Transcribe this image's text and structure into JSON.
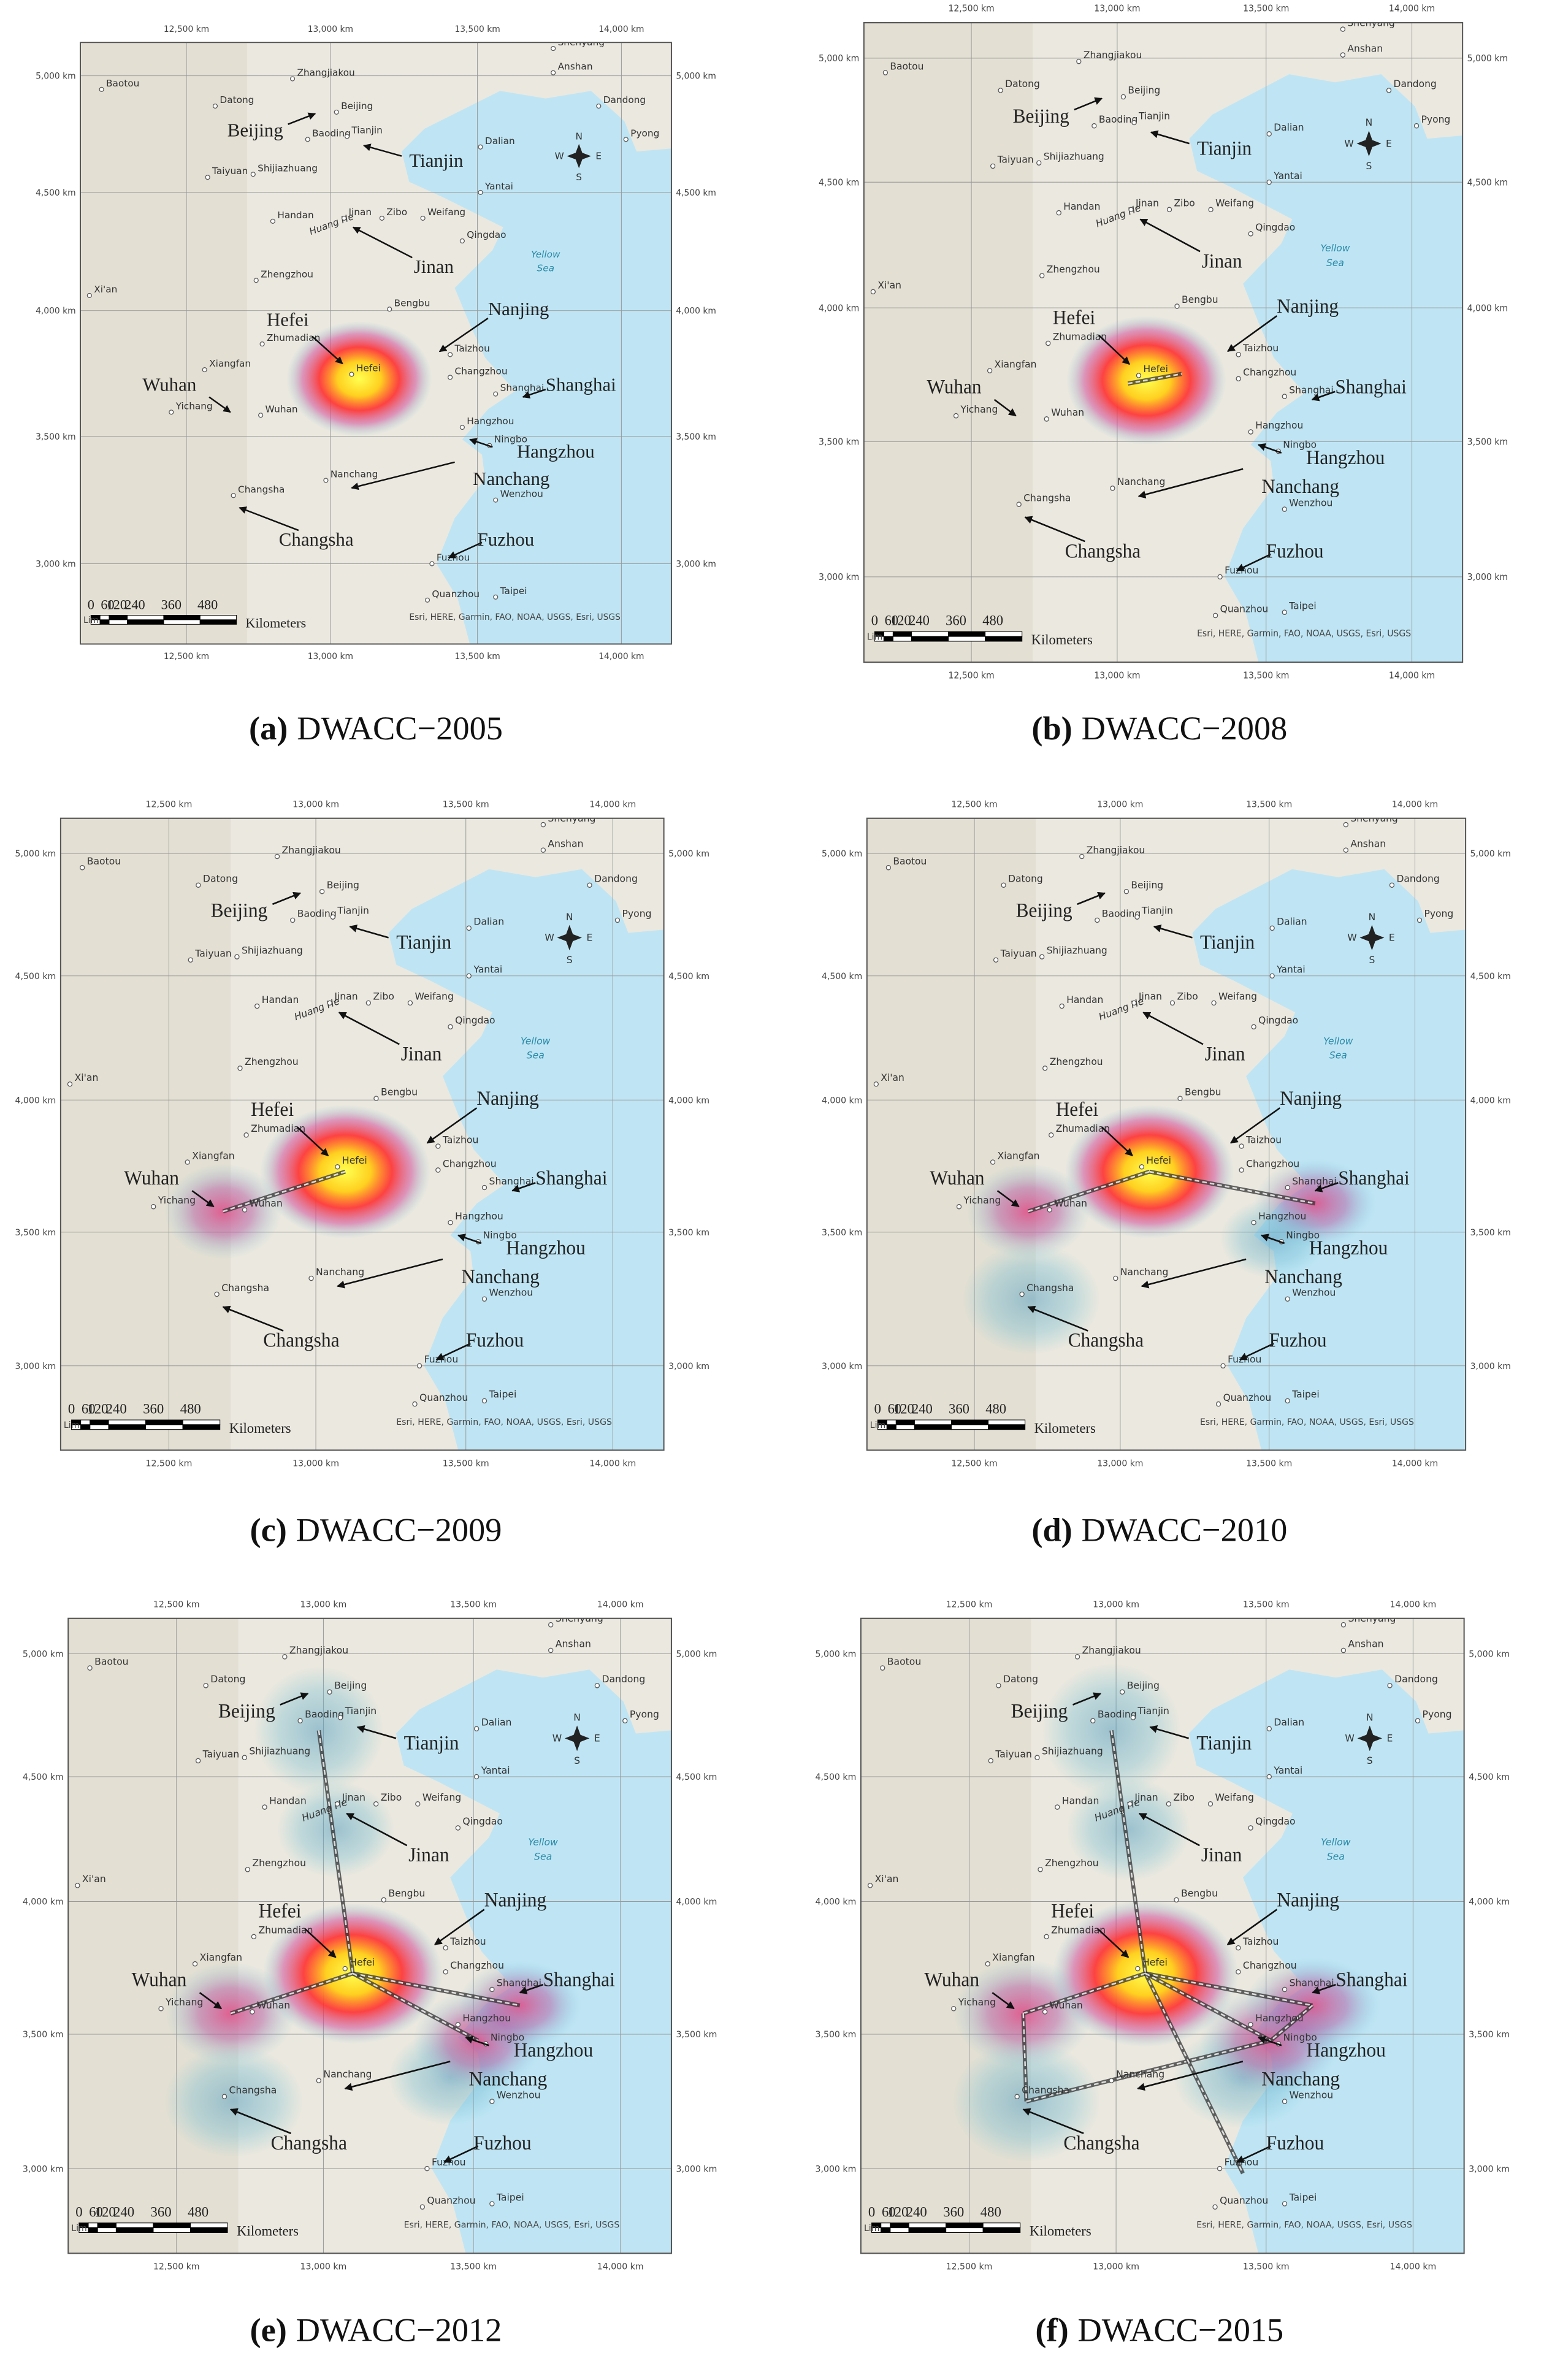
{
  "panels": [
    {
      "label": "(a)",
      "title": "DWACC−2005"
    },
    {
      "label": "(b)",
      "title": "DWACC−2008"
    },
    {
      "label": "(c)",
      "title": "DWACC−2009"
    },
    {
      "label": "(d)",
      "title": "DWACC−2010"
    },
    {
      "label": "(e)",
      "title": "DWACC−2012"
    },
    {
      "label": "(f)",
      "title": "DWACC−2015"
    }
  ],
  "axes": {
    "x_ticks": [
      "12,500 km",
      "13,000 km",
      "13,500 km",
      "14,000 km"
    ],
    "y_ticks": [
      "5,000 km",
      "4,500 km",
      "4,000 km",
      "3,500 km",
      "3,000 km"
    ]
  },
  "cities": [
    "Baotou",
    "Datong",
    "Zhangjiakou",
    "Beijing",
    "Shenyang",
    "Anshan",
    "Dandong",
    "Pyong",
    "Taiyuan",
    "Shijiazhuang",
    "Baoding",
    "Tianjin",
    "Dalian",
    "Yantai",
    "Handan",
    "Jinan",
    "Zibo",
    "Weifang",
    "Qingdao",
    "Xi'an",
    "Zhengzhou",
    "Bengbu",
    "Zhumadian",
    "Xiangfan",
    "Taizhou",
    "Hefei",
    "Changzhou",
    "Yichang",
    "Wuhan",
    "Shanghai",
    "Hangzhou",
    "Ningbo",
    "Nanchang",
    "Wenzhou",
    "Changsha",
    "Fuzhou",
    "Quanzhou",
    "Taipei"
  ],
  "featured_cities": [
    "Beijing",
    "Tianjin",
    "Jinan",
    "Nanjing",
    "Hefei",
    "Wuhan",
    "Shanghai",
    "Hangzhou",
    "Nanchang",
    "Changsha",
    "Fuzhou"
  ],
  "river": "Huang He",
  "sea": [
    "Yellow",
    "Sea"
  ],
  "compass": {
    "north": "N",
    "south": "S",
    "east": "E",
    "west": "W"
  },
  "scale_bar": {
    "labels": [
      "0",
      "60",
      "120",
      "240",
      "360",
      "480"
    ],
    "unit": "Kilometers",
    "cut_text": "Lim"
  },
  "attribution": "Esri, HERE, Garmin, FAO, NOAA, USGS, Esri, USGS"
}
